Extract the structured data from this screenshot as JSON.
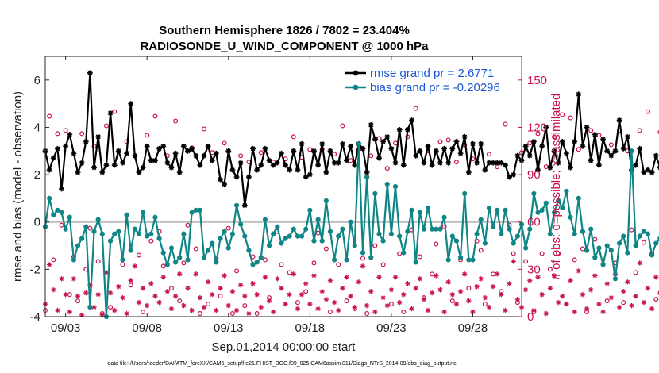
{
  "chart_data": {
    "type": "line",
    "title": "Southern Hemisphere 1826 / 7802 = 23.404%",
    "subtitle": "RADIOSONDE_U_WIND_COMPONENT @ 1000 hPa",
    "xlabel": "Sep.01,2014 00:00:00 start",
    "ylabel": "rmse and bias (model - observation)",
    "y2label": "# of obs: o=possible; ×=assimilated",
    "footnote": "data file: /Users/raeder/DAI/ATM_forcXX/CAM6_setup/f.e21.FHIST_BGC.f09_025.CAM6assim.011/Diags_NTrS_2014-09/obs_diag_output.nc",
    "xlim": [
      1.75,
      31.0
    ],
    "ylim": [
      -4,
      7
    ],
    "y2lim": [
      0,
      165
    ],
    "x_ticks": [
      {
        "x": 3,
        "label": "09/03"
      },
      {
        "x": 8,
        "label": "09/08"
      },
      {
        "x": 13,
        "label": "09/13"
      },
      {
        "x": 18,
        "label": "09/18"
      },
      {
        "x": 23,
        "label": "09/23"
      },
      {
        "x": 28,
        "label": "09/28"
      }
    ],
    "y_ticks": [
      {
        "v": -4,
        "label": "-4"
      },
      {
        "v": -2,
        "label": "-2"
      },
      {
        "v": 0,
        "label": "0"
      },
      {
        "v": 2,
        "label": "2"
      },
      {
        "v": 4,
        "label": "4"
      },
      {
        "v": 6,
        "label": "6"
      }
    ],
    "y2_ticks": [
      {
        "v": 0,
        "label": "0"
      },
      {
        "v": 30,
        "label": "30"
      },
      {
        "v": 60,
        "label": "60"
      },
      {
        "v": 90,
        "label": "90"
      },
      {
        "v": 120,
        "label": "120"
      },
      {
        "v": 150,
        "label": "150"
      }
    ],
    "zero_line": 0,
    "x_start": 1.75,
    "x_step": 0.25,
    "series": [
      {
        "name": "rmse grand pr = 2.6771",
        "color": "#000000",
        "marker": "star",
        "values": [
          3.0,
          2.2,
          2.7,
          3.1,
          1.4,
          3.2,
          3.7,
          2.9,
          2.1,
          2.5,
          3.4,
          6.3,
          2.3,
          3.6,
          2.1,
          2.4,
          4.6,
          2.4,
          3.0,
          2.5,
          2.9,
          5.0,
          2.8,
          2.1,
          2.3,
          3.2,
          2.6,
          2.6,
          3.1,
          3.2,
          2.5,
          2.3,
          2.9,
          2.1,
          3.2,
          3.0,
          3.1,
          2.8,
          2.4,
          2.8,
          3.2,
          2.6,
          2.9,
          1.8,
          1.6,
          3.0,
          2.2,
          1.9,
          2.5,
          0.7,
          1.9,
          3.1,
          2.2,
          2.4,
          3.1,
          2.6,
          2.4,
          2.5,
          2.9,
          2.4,
          2.2,
          3.0,
          2.2,
          3.3,
          1.9,
          2.0,
          3.0,
          2.4,
          3.3,
          2.1,
          3.0,
          2.5,
          2.5,
          3.3,
          2.6,
          3.2,
          2.4,
          3.3,
          3.1,
          2.1,
          4.1,
          3.5,
          2.7,
          3.4,
          3.6,
          3.1,
          2.5,
          3.9,
          2.4,
          3.9,
          4.3,
          2.8,
          3.0,
          2.5,
          3.2,
          2.4,
          3.0,
          2.5,
          3.1,
          2.5,
          3.1,
          3.4,
          2.9,
          3.6,
          2.1,
          3.3,
          2.5,
          3.3,
          2.2,
          2.5,
          2.5,
          2.5,
          2.5,
          2.4,
          1.9,
          2.0,
          2.8,
          2.6,
          3.2,
          2.8,
          3.4,
          2.2,
          3.2,
          4.0,
          2.3,
          3.0,
          2.5,
          3.4,
          2.9,
          2.3,
          3.4,
          5.4,
          3.2,
          4.0,
          2.6,
          3.7,
          2.4,
          3.5,
          3.0,
          2.8,
          3.0,
          4.3,
          3.1,
          3.6,
          2.2,
          2.4,
          3.1,
          2.1,
          2.2,
          2.1,
          2.8,
          2.3,
          1.6,
          2.7,
          3.6,
          2.4,
          2.1,
          2.7,
          1.8,
          3.8,
          2.3
        ]
      },
      {
        "name": "bias grand pr = -0.20296",
        "color": "#0f8585",
        "marker": "dot",
        "values": [
          -0.2,
          1.0,
          0.3,
          0.5,
          0.4,
          -0.3,
          0.2,
          -1.6,
          -1.0,
          -0.7,
          -0.2,
          -3.6,
          -0.4,
          0.1,
          -0.5,
          -4.0,
          -0.8,
          -0.5,
          -0.4,
          -1.6,
          0.3,
          -1.2,
          -0.3,
          -0.5,
          0.4,
          -0.6,
          -0.5,
          0.2,
          -0.7,
          -1.3,
          -1.8,
          -1.1,
          -1.7,
          -1.5,
          -0.5,
          -1.6,
          0.4,
          0.5,
          0.5,
          -1.5,
          -1.2,
          -0.9,
          -1.7,
          -0.7,
          -0.4,
          -1.1,
          -0.5,
          0.7,
          -0.1,
          -0.6,
          -1.2,
          -1.8,
          -1.7,
          -1.5,
          0.1,
          -1.0,
          -0.5,
          -0.2,
          -0.9,
          -0.7,
          -0.6,
          -0.3,
          -0.6,
          -0.6,
          -0.3,
          0.5,
          -0.8,
          0.1,
          -0.8,
          0.9,
          -0.4,
          -1.6,
          -0.6,
          -0.3,
          -1.6,
          0.0,
          -1.0,
          3.3,
          -1.3,
          1.9,
          -1.5,
          1.2,
          -0.5,
          -0.8,
          1.6,
          -0.5,
          1.5,
          -0.6,
          -1.3,
          -0.4,
          0.5,
          -1.7,
          0.4,
          -0.3,
          0.6,
          -0.3,
          -0.3,
          -0.3,
          0.2,
          -1.6,
          -0.6,
          -0.8,
          -1.5,
          1.2,
          -1.6,
          -1.6,
          -0.5,
          0.1,
          -0.9,
          0.6,
          -0.2,
          0.5,
          -0.5,
          0.5,
          -0.3,
          -0.9,
          -0.6,
          -0.1,
          -1.1,
          -0.3,
          1.2,
          0.4,
          0.5,
          0.8,
          -0.5,
          0.4,
          0.9,
          0.6,
          1.3,
          0.2,
          -0.5,
          1.0,
          -0.4,
          -1.2,
          -0.3,
          -1.5,
          -1.1,
          -1.8,
          -1.0,
          -1.2,
          -2.4,
          -0.9,
          -0.6,
          -1.3,
          3.0,
          -1.0,
          -0.6,
          -0.4,
          -0.5,
          -1.4,
          -0.9,
          -0.7,
          -0.3,
          -1.2,
          -0.6,
          -0.8,
          -1.3,
          -2.6,
          -0.4,
          0.2,
          0.3,
          0.6,
          1.8
        ]
      }
    ],
    "possible_obs": {
      "name": "possible obs",
      "color": "#c8104f",
      "marker": "circle",
      "values": [
        4,
        127,
        36,
        116,
        58,
        118,
        14,
        38,
        10,
        116,
        30,
        56,
        108,
        35,
        2,
        121,
        6,
        130,
        54,
        33,
        111,
        20,
        102,
        39,
        3,
        115,
        48,
        127,
        54,
        32,
        102,
        18,
        124,
        10,
        34,
        58,
        107,
        43,
        2,
        119,
        8,
        104,
        37,
        13,
        110,
        56,
        2,
        29,
        102,
        7,
        98,
        38,
        2,
        104,
        36,
        12,
        98,
        54,
        33,
        100,
        28,
        114,
        9,
        101,
        16,
        106,
        34,
        53,
        106,
        43,
        3,
        103,
        33,
        121,
        10,
        99,
        5,
        106,
        37,
        2,
        102,
        45,
        113,
        33,
        94,
        8,
        110,
        40,
        3,
        114,
        55,
        132,
        38,
        12,
        105,
        27,
        46,
        111,
        57,
        112,
        10,
        98,
        36,
        109,
        18,
        100,
        48,
        42,
        8,
        103,
        27,
        95,
        16,
        122,
        58,
        40,
        9,
        104,
        35,
        110,
        3,
        116,
        40,
        95,
        30,
        114,
        40,
        128,
        8,
        126,
        36,
        106,
        43,
        3,
        118,
        49,
        115,
        33,
        10,
        109,
        34,
        118,
        9,
        105,
        55,
        28,
        118,
        47,
        130,
        40,
        11,
        117,
        19,
        119,
        33,
        3,
        110,
        58,
        127,
        30,
        2
      ]
    },
    "assimilated_obs": {
      "name": "assimilated obs",
      "color": "#c8104f",
      "marker": "asterisk",
      "values": [
        8,
        33,
        17,
        4,
        24,
        14,
        3,
        24,
        13,
        1,
        15,
        20,
        6,
        14,
        1,
        28,
        15,
        4,
        19,
        12,
        2,
        23,
        32,
        9,
        18,
        7,
        21,
        13,
        9,
        25,
        16,
        5,
        13,
        27,
        7,
        18,
        4,
        27,
        12,
        6,
        22,
        14,
        4,
        18,
        26,
        7,
        16,
        4,
        20,
        13,
        2,
        21,
        14,
        6,
        25,
        10,
        3,
        24,
        18,
        8,
        14,
        27,
        5,
        14,
        21,
        8,
        26,
        5,
        16,
        11,
        23,
        9,
        4,
        18,
        25,
        13,
        6,
        22,
        32,
        7,
        16,
        3,
        25,
        12,
        7,
        17,
        25,
        9,
        14,
        21,
        5,
        18,
        24,
        11,
        4,
        15,
        26,
        17,
        3,
        22,
        14,
        8,
        16,
        27,
        10,
        3,
        19,
        24,
        12,
        6,
        19,
        27,
        14,
        4,
        21,
        35,
        11,
        6,
        17,
        23,
        4,
        25,
        14,
        2,
        18,
        26,
        9,
        13,
        8,
        23,
        3,
        29,
        14,
        5,
        17,
        26,
        8,
        3,
        21,
        12,
        27,
        6,
        16,
        22,
        7,
        13,
        34,
        9,
        18,
        5,
        25,
        15,
        4,
        23,
        10,
        5,
        18,
        27,
        12,
        4,
        0
      ]
    }
  }
}
